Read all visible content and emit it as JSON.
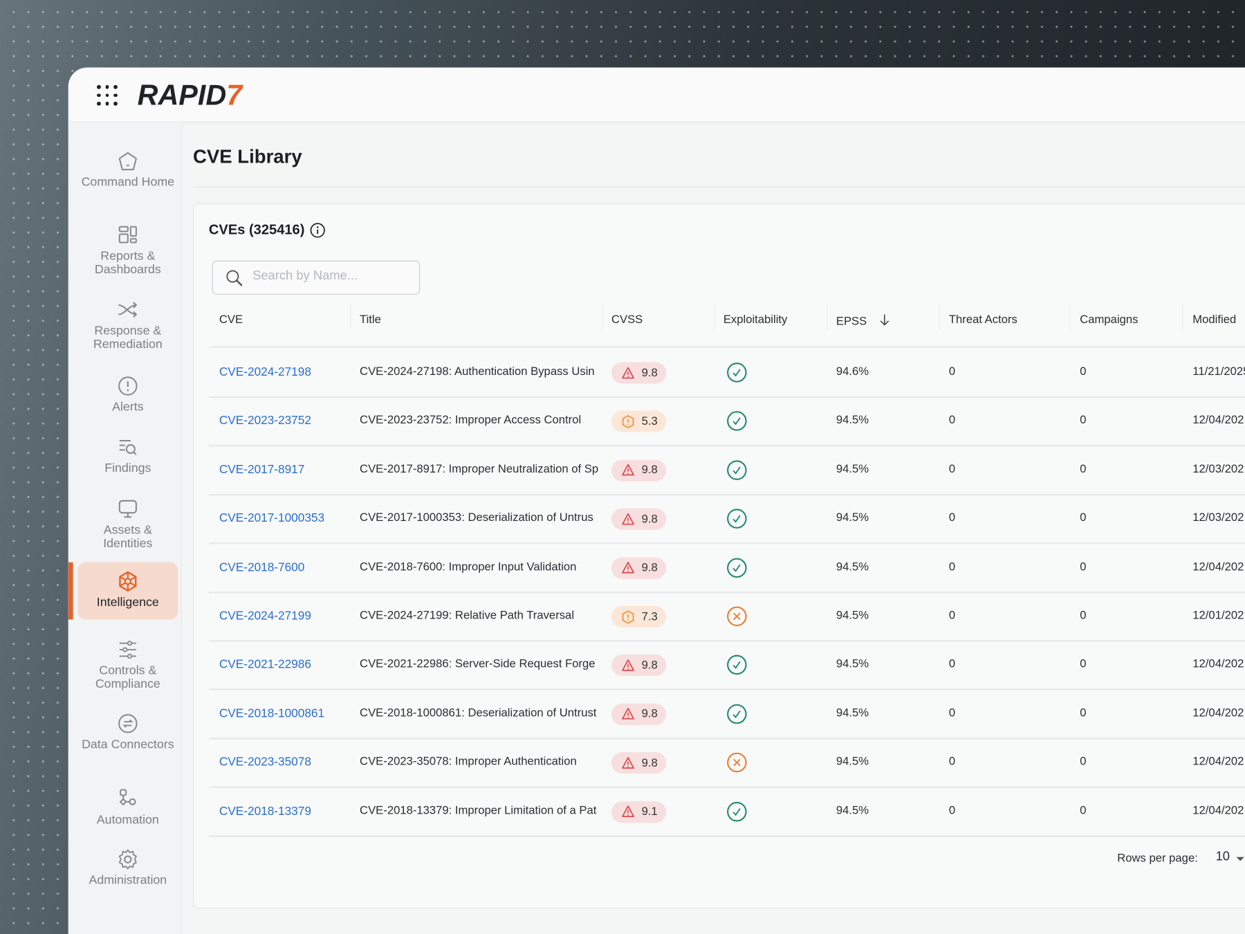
{
  "app": {
    "logo_text": "RAPID",
    "logo_mark": "7"
  },
  "colors": {
    "brand_orange": "#e5622a",
    "link_blue": "#2a6fd1",
    "critical_red": "#e0474c",
    "high_orange": "#f0913a",
    "exploit_yes": "#1e8a6a",
    "exploit_no": "#f07a2a"
  },
  "sidebar": {
    "items": [
      {
        "label": "Command Home",
        "icon": "home-icon",
        "active": false
      },
      {
        "label": "Reports & Dashboards",
        "icon": "dashboard-icon",
        "active": false
      },
      {
        "label": "Response & Remediation",
        "icon": "shuffle-icon",
        "active": false
      },
      {
        "label": "Alerts",
        "icon": "alert-icon",
        "active": false
      },
      {
        "label": "Findings",
        "icon": "findings-icon",
        "active": false
      },
      {
        "label": "Assets & Identities",
        "icon": "monitor-icon",
        "active": false
      },
      {
        "label": "Intelligence",
        "icon": "intelligence-icon",
        "active": true
      },
      {
        "label": "Controls & Compliance",
        "icon": "sliders-icon",
        "active": false
      },
      {
        "label": "Data Connectors",
        "icon": "connector-icon",
        "active": false
      },
      {
        "label": "Automation",
        "icon": "workflow-icon",
        "active": false
      },
      {
        "label": "Administration",
        "icon": "gear-icon",
        "active": false
      }
    ]
  },
  "page": {
    "title": "CVE Library"
  },
  "card": {
    "title": "CVEs (325416)",
    "search_placeholder": "Search by Name...",
    "columns": [
      "CVE",
      "Title",
      "CVSS",
      "Exploitability",
      "EPSS",
      "Threat Actors",
      "Campaigns",
      "Modified"
    ],
    "sort_column": "EPSS",
    "sort_direction": "descending",
    "rows": [
      {
        "cve": "CVE-2024-27198",
        "title": "CVE-2024-27198: Authentication Bypass Usin",
        "cvss": "9.8",
        "severity": "critical",
        "exploitable": true,
        "epss": "94.6%",
        "threat_actors": "0",
        "campaigns": "0",
        "modified": "11/21/2025"
      },
      {
        "cve": "CVE-2023-23752",
        "title": "CVE-2023-23752: Improper Access Control",
        "cvss": "5.3",
        "severity": "medium",
        "exploitable": true,
        "epss": "94.5%",
        "threat_actors": "0",
        "campaigns": "0",
        "modified": "12/04/202"
      },
      {
        "cve": "CVE-2017-8917",
        "title": "CVE-2017-8917: Improper Neutralization of Sp",
        "cvss": "9.8",
        "severity": "critical",
        "exploitable": true,
        "epss": "94.5%",
        "threat_actors": "0",
        "campaigns": "0",
        "modified": "12/03/202"
      },
      {
        "cve": "CVE-2017-1000353",
        "title": "CVE-2017-1000353: Deserialization of Untrus",
        "cvss": "9.8",
        "severity": "critical",
        "exploitable": true,
        "epss": "94.5%",
        "threat_actors": "0",
        "campaigns": "0",
        "modified": "12/03/202"
      },
      {
        "cve": "CVE-2018-7600",
        "title": "CVE-2018-7600: Improper Input Validation",
        "cvss": "9.8",
        "severity": "critical",
        "exploitable": true,
        "epss": "94.5%",
        "threat_actors": "0",
        "campaigns": "0",
        "modified": "12/04/202"
      },
      {
        "cve": "CVE-2024-27199",
        "title": "CVE-2024-27199: Relative Path Traversal",
        "cvss": "7.3",
        "severity": "high",
        "exploitable": false,
        "epss": "94.5%",
        "threat_actors": "0",
        "campaigns": "0",
        "modified": "12/01/202"
      },
      {
        "cve": "CVE-2021-22986",
        "title": "CVE-2021-22986: Server-Side Request Forge",
        "cvss": "9.8",
        "severity": "critical",
        "exploitable": true,
        "epss": "94.5%",
        "threat_actors": "0",
        "campaigns": "0",
        "modified": "12/04/202"
      },
      {
        "cve": "CVE-2018-1000861",
        "title": "CVE-2018-1000861: Deserialization of Untrust",
        "cvss": "9.8",
        "severity": "critical",
        "exploitable": true,
        "epss": "94.5%",
        "threat_actors": "0",
        "campaigns": "0",
        "modified": "12/04/202"
      },
      {
        "cve": "CVE-2023-35078",
        "title": "CVE-2023-35078: Improper Authentication",
        "cvss": "9.8",
        "severity": "critical",
        "exploitable": false,
        "epss": "94.5%",
        "threat_actors": "0",
        "campaigns": "0",
        "modified": "12/04/202"
      },
      {
        "cve": "CVE-2018-13379",
        "title": "CVE-2018-13379: Improper Limitation of a Pat",
        "cvss": "9.1",
        "severity": "critical",
        "exploitable": true,
        "epss": "94.5%",
        "threat_actors": "0",
        "campaigns": "0",
        "modified": "12/04/202"
      }
    ],
    "pagination": {
      "rows_per_page_label": "Rows per page:",
      "rows_per_page": "10"
    }
  }
}
